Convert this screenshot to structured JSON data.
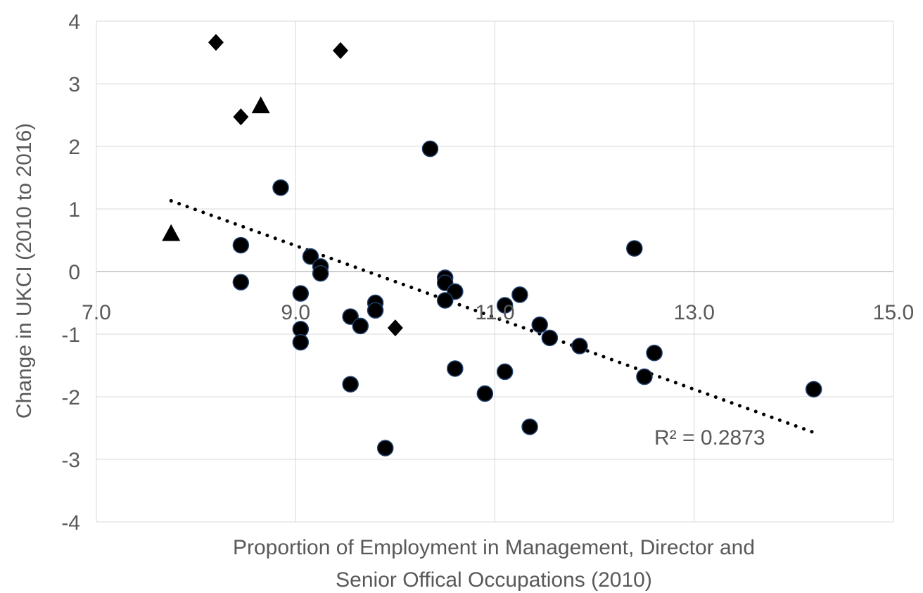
{
  "chart_data": {
    "type": "scatter",
    "title": "",
    "xlabel_lines": [
      "Proportion of Employment in Management, Director and",
      "Senior Offical Occupations (2010)"
    ],
    "ylabel": "Change in UKCI (2010 to 2016)",
    "xlim": [
      7.0,
      15.0
    ],
    "ylim": [
      -4,
      4
    ],
    "x_ticks": [
      7.0,
      9.0,
      11.0,
      13.0,
      15.0
    ],
    "x_tick_labels": [
      "7.0",
      "9.0",
      "11.0",
      "13.0",
      "15.0"
    ],
    "y_ticks": [
      -4,
      -3,
      -2,
      -1,
      0,
      1,
      2,
      3,
      4
    ],
    "y_tick_labels": [
      "-4",
      "-3",
      "-2",
      "-1",
      "0",
      "1",
      "2",
      "3",
      "4"
    ],
    "grid": true,
    "series": [
      {
        "marker": "circle",
        "color": "#000000",
        "points": [
          [
            10.35,
            1.96
          ],
          [
            8.85,
            1.34
          ],
          [
            12.4,
            0.37
          ],
          [
            8.45,
            0.42
          ],
          [
            9.15,
            0.24
          ],
          [
            9.25,
            0.08
          ],
          [
            9.25,
            -0.03
          ],
          [
            8.45,
            -0.17
          ],
          [
            10.5,
            -0.1
          ],
          [
            10.5,
            -0.18
          ],
          [
            10.6,
            -0.32
          ],
          [
            10.5,
            -0.46
          ],
          [
            11.25,
            -0.37
          ],
          [
            9.05,
            -0.35
          ],
          [
            9.8,
            -0.5
          ],
          [
            9.8,
            -0.62
          ],
          [
            9.55,
            -0.72
          ],
          [
            9.65,
            -0.87
          ],
          [
            11.1,
            -0.54
          ],
          [
            11.45,
            -0.85
          ],
          [
            9.05,
            -0.92
          ],
          [
            11.55,
            -1.06
          ],
          [
            9.05,
            -1.13
          ],
          [
            11.85,
            -1.19
          ],
          [
            12.6,
            -1.3
          ],
          [
            10.6,
            -1.55
          ],
          [
            11.1,
            -1.6
          ],
          [
            12.5,
            -1.68
          ],
          [
            9.55,
            -1.8
          ],
          [
            10.9,
            -1.95
          ],
          [
            14.2,
            -1.88
          ],
          [
            11.35,
            -2.48
          ],
          [
            9.9,
            -2.82
          ]
        ]
      },
      {
        "marker": "diamond",
        "color": "#000000",
        "points": [
          [
            8.2,
            3.66
          ],
          [
            9.45,
            3.53
          ],
          [
            8.45,
            2.47
          ],
          [
            10.0,
            -0.9
          ]
        ]
      },
      {
        "marker": "triangle",
        "color": "#000000",
        "points": [
          [
            8.65,
            2.64
          ],
          [
            7.75,
            0.6
          ]
        ]
      }
    ],
    "trendline": {
      "style": "dotted",
      "color": "#000000",
      "x": [
        7.75,
        14.2
      ],
      "y": [
        1.13,
        -2.57
      ],
      "label": "R² = 0.2873"
    }
  }
}
